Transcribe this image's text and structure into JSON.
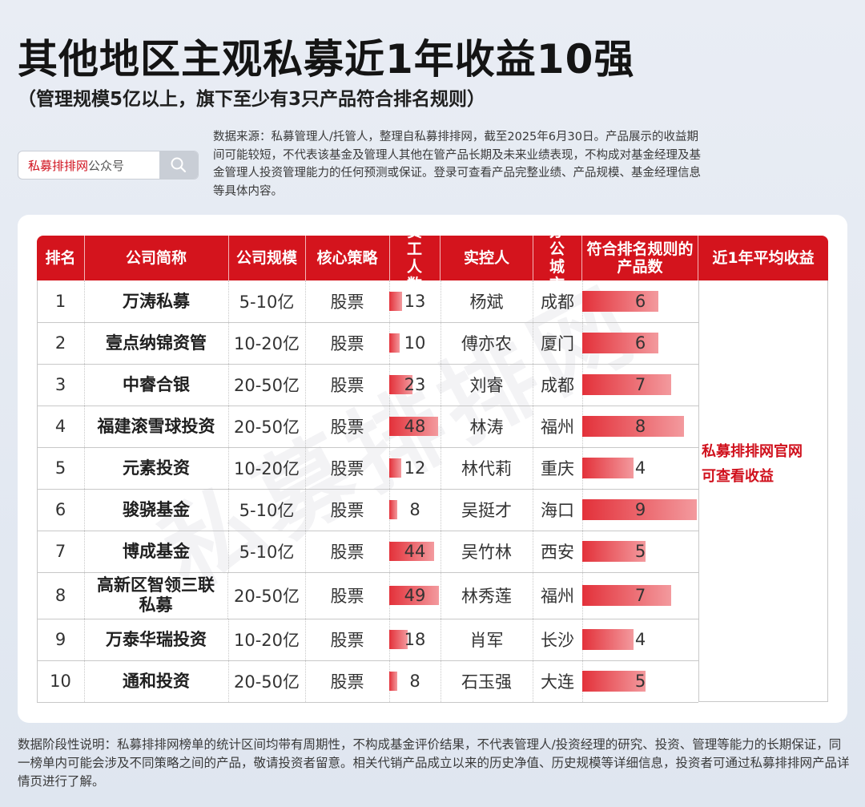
{
  "title": "其他地区主观私募近1年收益10强",
  "subtitle": "（管理规模5亿以上，旗下至少有3只产品符合排名规则）",
  "search": {
    "brand": "私募排排网",
    "suffix": "公众号"
  },
  "source_text": "数据来源：私募管理人/托管人，整理自私募排排网，截至2025年6月30日。产品展示的收益期间可能较短，不代表该基金及管理人其他在管产品长期及未来业绩表现，不构成对基金经理及基金管理人投资管理能力的任何预测或保证。登录可查看产品完整业绩、产品规模、基金经理信息等具体内容。",
  "table": {
    "headers": [
      "排名",
      "公司简称",
      "公司规模",
      "核心策略",
      "员工人数",
      "实控人",
      "办公城市",
      "符合排名规则的产品数",
      "近1年平均收益"
    ],
    "rows": [
      {
        "rank": "1",
        "name": "万涛私募",
        "scale": "5-10亿",
        "strategy": "股票",
        "staff": 13,
        "controller": "杨斌",
        "city": "成都",
        "products": 6
      },
      {
        "rank": "2",
        "name": "壹点纳锦资管",
        "scale": "10-20亿",
        "strategy": "股票",
        "staff": 10,
        "controller": "傅亦农",
        "city": "厦门",
        "products": 6
      },
      {
        "rank": "3",
        "name": "中睿合银",
        "scale": "20-50亿",
        "strategy": "股票",
        "staff": 23,
        "controller": "刘睿",
        "city": "成都",
        "products": 7
      },
      {
        "rank": "4",
        "name": "福建滚雪球投资",
        "scale": "20-50亿",
        "strategy": "股票",
        "staff": 48,
        "controller": "林涛",
        "city": "福州",
        "products": 8
      },
      {
        "rank": "5",
        "name": "元素投资",
        "scale": "10-20亿",
        "strategy": "股票",
        "staff": 12,
        "controller": "林代莉",
        "city": "重庆",
        "products": 4
      },
      {
        "rank": "6",
        "name": "骏骁基金",
        "scale": "5-10亿",
        "strategy": "股票",
        "staff": 8,
        "controller": "吴挺才",
        "city": "海口",
        "products": 9
      },
      {
        "rank": "7",
        "name": "博成基金",
        "scale": "5-10亿",
        "strategy": "股票",
        "staff": 44,
        "controller": "吴竹林",
        "city": "西安",
        "products": 5
      },
      {
        "rank": "8",
        "name": "高新区智领三联私募",
        "scale": "20-50亿",
        "strategy": "股票",
        "staff": 49,
        "controller": "林秀莲",
        "city": "福州",
        "products": 7
      },
      {
        "rank": "9",
        "name": "万泰华瑞投资",
        "scale": "10-20亿",
        "strategy": "股票",
        "staff": 18,
        "controller": "肖军",
        "city": "长沙",
        "products": 4
      },
      {
        "rank": "10",
        "name": "通和投资",
        "scale": "20-50亿",
        "strategy": "股票",
        "staff": 8,
        "controller": "石玉强",
        "city": "大连",
        "products": 5
      }
    ],
    "return_note_line1": "私募排排网官网",
    "return_note_line2": "可查看收益"
  },
  "watermark": "私募排排网",
  "footer_text": "数据阶段性说明：私募排排网榜单的统计区间均带有周期性，不构成基金评价结果，不代表管理人/投资经理的研究、投资、管理等能力的长期保证，同一榜单内可能会涉及不同策略之间的产品，敬请投资者留意。相关代销产品成立以来的历史净值、历史规模等详细信息，投资者可通过私募排排网产品详情页进行了解。",
  "colors": {
    "header_red": "#d4141d",
    "bar_start": "#e3313a",
    "bar_end": "#f39a9e",
    "note_red": "#d0101c"
  }
}
